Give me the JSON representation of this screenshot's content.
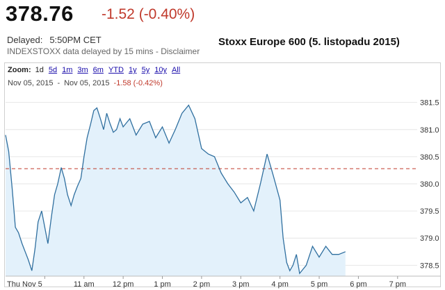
{
  "header": {
    "price": "378.76",
    "change": "-1.52 (-0.40%)",
    "delayed_label": "Delayed:",
    "delayed_time": "5:50PM CET",
    "disclaimer": "INDEXSTOXX data delayed by 15 mins - Disclaimer",
    "caption": "Stoxx Europe 600 (5. listopadu 2015)"
  },
  "toolbar": {
    "zoom_label": "Zoom:",
    "options": [
      "1d",
      "5d",
      "1m",
      "3m",
      "6m",
      "YTD",
      "1y",
      "5y",
      "10y",
      "All"
    ],
    "range_from": "Nov 05, 2015",
    "range_sep": "-",
    "range_to": "Nov 05, 2015",
    "range_change": "-1.58 (-0.42%)"
  },
  "colors": {
    "line": "#2f6f9f",
    "fill": "#e3f1fb",
    "reference": "#c0392b",
    "grid": "#e6e6e6"
  },
  "chart_data": {
    "type": "area",
    "x_ticks": [
      "Thu Nov 5",
      "11 am",
      "12 pm",
      "1 pm",
      "2 pm",
      "3 pm",
      "4 pm",
      "5 pm",
      "6 pm",
      "7 pm"
    ],
    "y_ticks": [
      378.5,
      379.0,
      379.5,
      380.0,
      380.5,
      381.0,
      381.5
    ],
    "ylim": [
      378.3,
      381.7
    ],
    "xlim": [
      9.0,
      19.5
    ],
    "previous_close": 380.28,
    "grid": true,
    "series": [
      {
        "x": [
          9.0,
          9.08,
          9.17,
          9.25,
          9.33,
          9.42,
          9.5,
          9.58,
          9.67,
          9.75,
          9.83,
          9.92,
          10.0,
          10.08,
          10.17,
          10.25,
          10.33,
          10.42,
          10.5,
          10.58,
          10.67,
          10.75,
          10.83,
          10.92,
          11.0,
          11.08,
          11.17,
          11.25,
          11.33,
          11.42,
          11.5,
          11.58,
          11.67,
          11.75,
          11.83,
          11.92,
          12.0,
          12.17,
          12.33,
          12.5,
          12.67,
          12.83,
          13.0,
          13.17,
          13.33,
          13.5,
          13.67,
          13.83,
          14.0,
          14.17,
          14.33,
          14.5,
          14.67,
          14.83,
          15.0,
          15.17,
          15.33,
          15.5,
          15.67,
          15.83,
          16.0,
          16.08,
          16.17,
          16.25,
          16.33,
          16.42,
          16.5,
          16.67,
          16.83,
          17.0,
          17.17,
          17.33,
          17.5,
          17.67
        ],
        "values": [
          380.9,
          380.6,
          379.9,
          379.2,
          379.1,
          378.9,
          378.75,
          378.6,
          378.4,
          378.8,
          379.3,
          379.5,
          379.2,
          378.9,
          379.4,
          379.8,
          380.0,
          380.3,
          380.1,
          379.8,
          379.6,
          379.8,
          379.95,
          380.1,
          380.5,
          380.85,
          381.1,
          381.35,
          381.4,
          381.2,
          381.0,
          381.3,
          381.1,
          380.95,
          381.0,
          381.2,
          381.05,
          381.2,
          380.9,
          381.1,
          381.15,
          380.85,
          381.05,
          380.75,
          381.0,
          381.3,
          381.45,
          381.2,
          380.65,
          380.55,
          380.5,
          380.2,
          380.0,
          379.85,
          379.65,
          379.75,
          379.5,
          380.0,
          380.55,
          380.15,
          379.7,
          379.0,
          378.55,
          378.4,
          378.5,
          378.7,
          378.35,
          378.5,
          378.85,
          378.65,
          378.85,
          378.7,
          378.7,
          378.75
        ]
      }
    ]
  }
}
